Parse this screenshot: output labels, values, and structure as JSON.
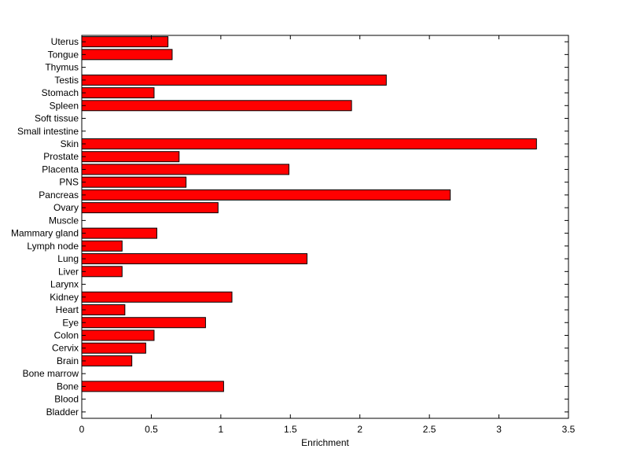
{
  "chart_data": {
    "type": "bar",
    "orientation": "horizontal",
    "title": "",
    "xlabel": "Enrichment",
    "ylabel": "",
    "xlim": [
      0,
      3.5
    ],
    "x_ticks": [
      0,
      0.5,
      1,
      1.5,
      2,
      2.5,
      3,
      3.5
    ],
    "x_tick_labels": [
      "0",
      "0.5",
      "1",
      "1.5",
      "2",
      "2.5",
      "3",
      "3.5"
    ],
    "grid": false,
    "legend": "none",
    "bar_color": "#ff0000",
    "edge_color": "#000000",
    "categories": [
      "Bladder",
      "Blood",
      "Bone",
      "Bone marrow",
      "Brain",
      "Cervix",
      "Colon",
      "Eye",
      "Heart",
      "Kidney",
      "Larynx",
      "Liver",
      "Lung",
      "Lymph node",
      "Mammary gland",
      "Muscle",
      "Ovary",
      "Pancreas",
      "PNS",
      "Placenta",
      "Prostate",
      "Skin",
      "Small intestine",
      "Soft tissue",
      "Spleen",
      "Stomach",
      "Testis",
      "Thymus",
      "Tongue",
      "Uterus"
    ],
    "values": [
      0,
      0,
      1.02,
      0,
      0.36,
      0.46,
      0.52,
      0.89,
      0.31,
      1.08,
      0,
      0.29,
      1.62,
      0.29,
      0.54,
      0,
      0.98,
      2.65,
      0.75,
      1.49,
      0.7,
      3.27,
      0,
      0,
      1.94,
      0.52,
      2.19,
      0,
      0.65,
      0.62
    ]
  }
}
